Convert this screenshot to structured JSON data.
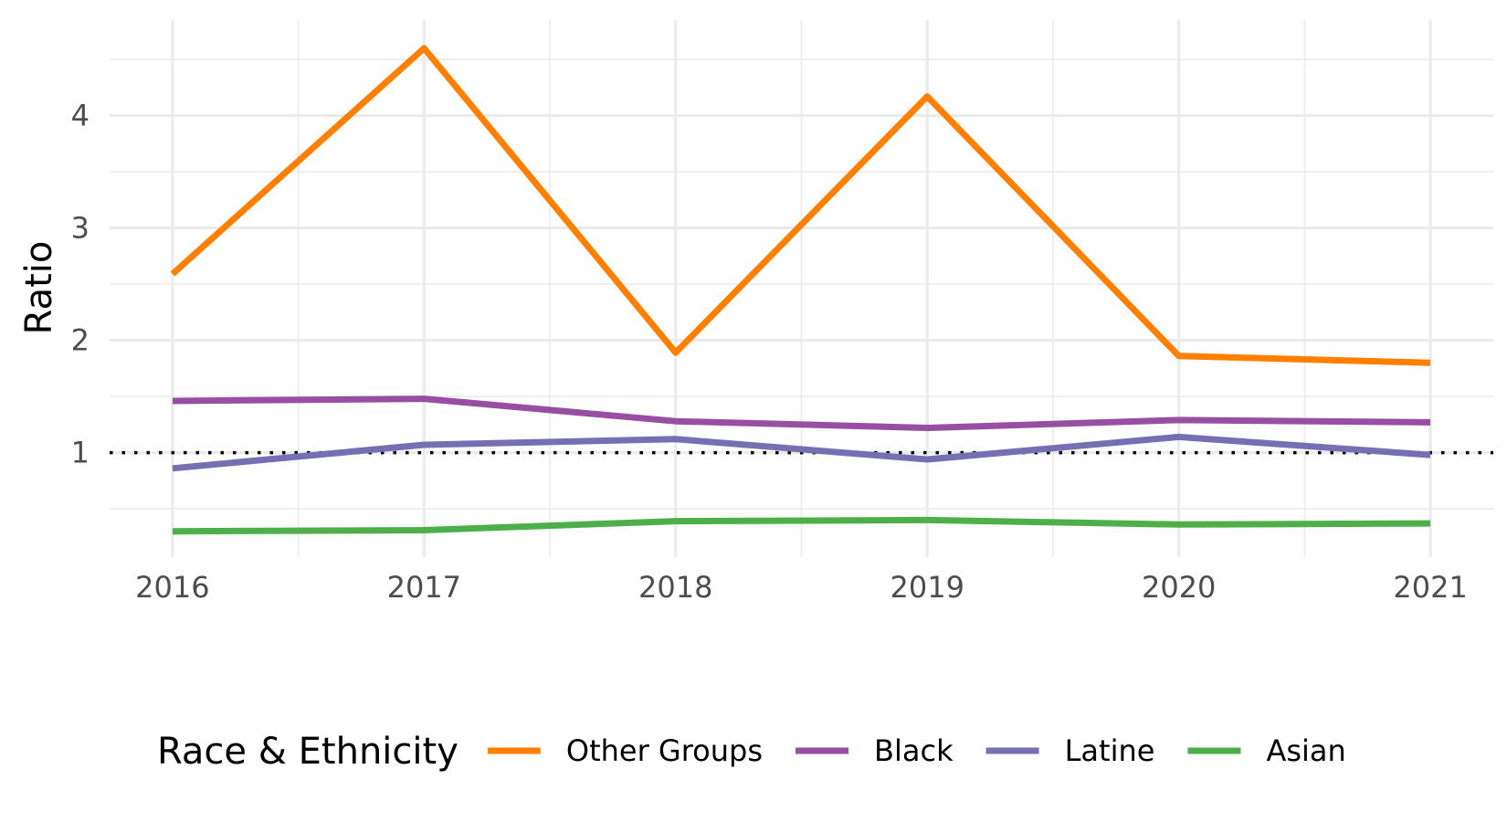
{
  "chart_data": {
    "type": "line",
    "title": "",
    "xlabel": "",
    "ylabel": "Ratio",
    "x": [
      2016,
      2017,
      2018,
      2019,
      2020,
      2021
    ],
    "xlim": [
      2015.75,
      2021.25
    ],
    "ylim": [
      0.07,
      4.85
    ],
    "yticks": [
      1,
      2,
      3,
      4
    ],
    "grid": true,
    "reference_line": {
      "y": 1,
      "style": "dotted",
      "color": "#000000"
    },
    "legend": {
      "title": "Race & Ethnicity",
      "position": "bottom"
    },
    "series": [
      {
        "name": "Other Groups",
        "color": "#ff7f00",
        "values": [
          2.59,
          4.6,
          1.89,
          4.17,
          1.86,
          1.8
        ]
      },
      {
        "name": "Black",
        "color": "#984ea3",
        "values": [
          1.46,
          1.48,
          1.28,
          1.22,
          1.29,
          1.27
        ]
      },
      {
        "name": "Latine",
        "color": "#7570b3",
        "values": [
          0.86,
          1.07,
          1.12,
          0.94,
          1.14,
          0.98
        ]
      },
      {
        "name": "Asian",
        "color": "#4daf4a",
        "values": [
          0.3,
          0.31,
          0.39,
          0.4,
          0.36,
          0.37
        ]
      }
    ]
  }
}
